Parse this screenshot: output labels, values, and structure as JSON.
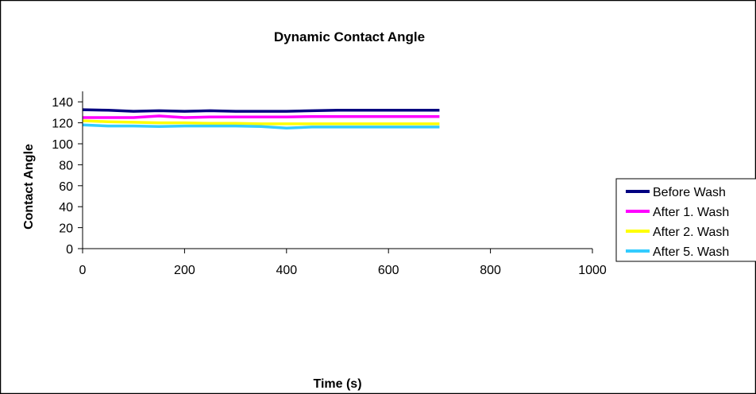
{
  "chart_data": {
    "type": "line",
    "title": "Dynamic Contact Angle",
    "xlabel": "Time (s)",
    "ylabel": "Contact Angle",
    "xlim": [
      0,
      1000
    ],
    "ylim": [
      0,
      150
    ],
    "xticks": [
      0,
      200,
      400,
      600,
      800,
      1000
    ],
    "yticks": [
      0,
      20,
      40,
      60,
      80,
      100,
      120,
      140
    ],
    "grid": false,
    "legend_position": "right",
    "series": [
      {
        "name": "Before Wash",
        "color": "#000080",
        "x": [
          0,
          50,
          100,
          150,
          200,
          250,
          300,
          350,
          400,
          450,
          500,
          550,
          600,
          650,
          700
        ],
        "y": [
          132.5,
          132,
          131,
          131.5,
          131,
          131.5,
          131,
          131,
          131,
          131.5,
          132,
          132,
          132,
          132,
          132
        ]
      },
      {
        "name": "After 1. Wash",
        "color": "#FF00FF",
        "x": [
          0,
          50,
          100,
          150,
          200,
          250,
          300,
          350,
          400,
          450,
          500,
          550,
          600,
          650,
          700
        ],
        "y": [
          125,
          125,
          125,
          126.5,
          125,
          125.5,
          125.5,
          125.5,
          125.5,
          126,
          126,
          126,
          126,
          126,
          126
        ]
      },
      {
        "name": "After 2. Wash",
        "color": "#FFFF00",
        "x": [
          0,
          50,
          100,
          150,
          200,
          250,
          300,
          350,
          400,
          450,
          500,
          550,
          600,
          650,
          700
        ],
        "y": [
          122,
          121,
          120.5,
          120,
          120,
          119.5,
          119.5,
          119,
          119,
          119,
          119,
          119,
          119,
          119,
          119
        ]
      },
      {
        "name": "After 5. Wash",
        "color": "#33CCFF",
        "x": [
          0,
          50,
          100,
          150,
          200,
          250,
          300,
          350,
          400,
          450,
          500,
          550,
          600,
          650,
          700
        ],
        "y": [
          118,
          117,
          117,
          116.5,
          117,
          117,
          117,
          116.5,
          115,
          116,
          116,
          116,
          116,
          116,
          116
        ]
      }
    ]
  }
}
